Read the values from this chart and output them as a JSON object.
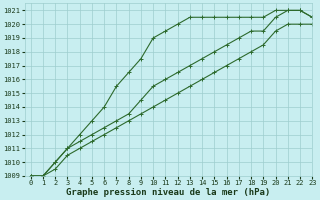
{
  "xlabel": "Graphe pression niveau de la mer (hPa)",
  "x": [
    0,
    1,
    2,
    3,
    4,
    5,
    6,
    7,
    8,
    9,
    10,
    11,
    12,
    13,
    14,
    15,
    16,
    17,
    18,
    19,
    20,
    21,
    22,
    23
  ],
  "line1": [
    1009.0,
    1009.0,
    1009.5,
    1010.5,
    1011.0,
    1011.5,
    1012.0,
    1012.5,
    1013.0,
    1013.5,
    1014.0,
    1014.5,
    1015.0,
    1015.5,
    1016.0,
    1016.5,
    1017.0,
    1017.5,
    1018.0,
    1018.5,
    1019.5,
    1020.0,
    1020.0,
    1020.0
  ],
  "line2": [
    1009.0,
    1009.0,
    1010.0,
    1011.0,
    1012.0,
    1013.0,
    1014.0,
    1015.5,
    1016.5,
    1017.5,
    1019.0,
    1019.5,
    1020.0,
    1020.5,
    1020.5,
    1020.5,
    1020.5,
    1020.5,
    1020.5,
    1020.5,
    1021.0,
    1021.0,
    1021.0,
    1020.5
  ],
  "line3": [
    1009.0,
    1009.0,
    1010.0,
    1011.0,
    1011.5,
    1012.0,
    1012.5,
    1013.0,
    1013.5,
    1014.5,
    1015.5,
    1016.0,
    1016.5,
    1017.0,
    1017.5,
    1018.0,
    1018.5,
    1019.0,
    1019.5,
    1019.5,
    1020.5,
    1021.0,
    1021.0,
    1020.5
  ],
  "ylim": [
    1009,
    1021.5
  ],
  "xlim": [
    -0.5,
    23
  ],
  "yticks": [
    1009,
    1010,
    1011,
    1012,
    1013,
    1014,
    1015,
    1016,
    1017,
    1018,
    1019,
    1020,
    1021
  ],
  "xticks": [
    0,
    1,
    2,
    3,
    4,
    5,
    6,
    7,
    8,
    9,
    10,
    11,
    12,
    13,
    14,
    15,
    16,
    17,
    18,
    19,
    20,
    21,
    22,
    23
  ],
  "line_color": "#2d6a2d",
  "marker": "+",
  "bg_color": "#c8eef0",
  "grid_color": "#9ecece",
  "label_color": "#1a3a1a",
  "tick_fontsize": 5,
  "xlabel_fontsize": 6.5,
  "marker_size": 3.5,
  "line_width": 0.8
}
